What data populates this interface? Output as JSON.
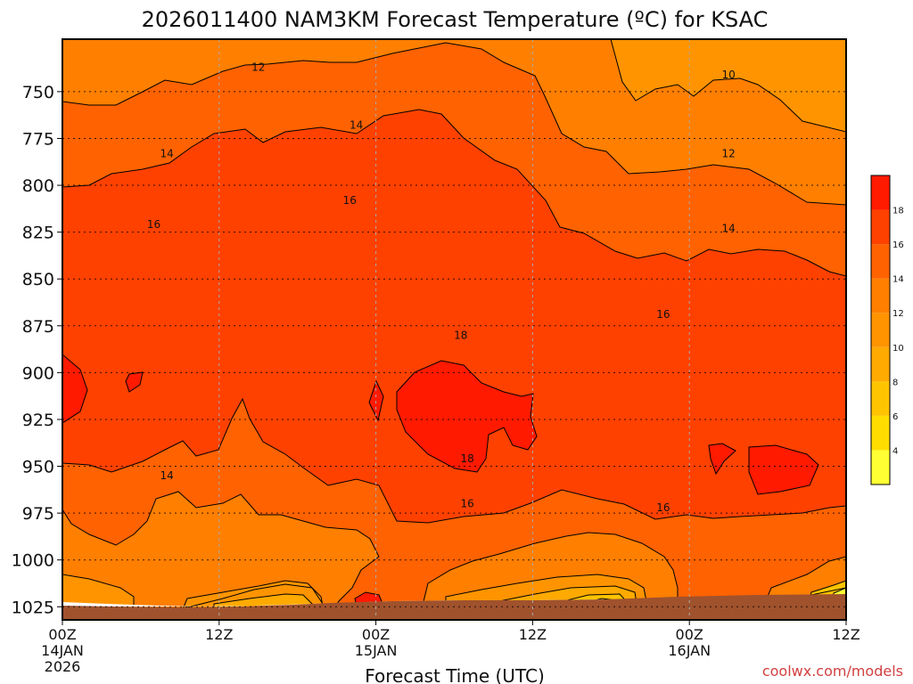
{
  "chart_data": {
    "type": "heatmap",
    "title": "2026011400 NAM3KM Forecast Temperature (ºC) for KSAC",
    "xlabel": "Forecast Time (UTC)",
    "ylabel": "",
    "y_ticks": [
      "750",
      "775",
      "800",
      "825",
      "850",
      "875",
      "900",
      "925",
      "950",
      "975",
      "1000",
      "1025"
    ],
    "y_range": [
      722,
      1032
    ],
    "x_ticks": [
      {
        "hour": 0,
        "label": "00Z",
        "date": "14JAN",
        "year": "2026"
      },
      {
        "hour": 12,
        "label": "12Z",
        "date": "",
        "year": ""
      },
      {
        "hour": 24,
        "label": "00Z",
        "date": "15JAN",
        "year": ""
      },
      {
        "hour": 36,
        "label": "12Z",
        "date": "",
        "year": ""
      },
      {
        "hour": 48,
        "label": "00Z",
        "date": "16JAN",
        "year": ""
      },
      {
        "hour": 60,
        "label": "12Z",
        "date": "",
        "year": ""
      }
    ],
    "x_range": [
      0,
      60
    ],
    "contour_interval": 2,
    "contour_labels": [
      {
        "text": "12",
        "hour": 15.0,
        "p": 737
      },
      {
        "text": "10",
        "hour": 51.0,
        "p": 741
      },
      {
        "text": "14",
        "hour": 22.5,
        "p": 768
      },
      {
        "text": "14",
        "hour": 8.0,
        "p": 783
      },
      {
        "text": "12",
        "hour": 51.0,
        "p": 783
      },
      {
        "text": "16",
        "hour": 22.0,
        "p": 808
      },
      {
        "text": "16",
        "hour": 7.0,
        "p": 821
      },
      {
        "text": "14",
        "hour": 51.0,
        "p": 823
      },
      {
        "text": "16",
        "hour": 46.0,
        "p": 869
      },
      {
        "text": "18",
        "hour": 30.5,
        "p": 880
      },
      {
        "text": "18",
        "hour": 31.0,
        "p": 946
      },
      {
        "text": "14",
        "hour": 8.0,
        "p": 955
      },
      {
        "text": "16",
        "hour": 31.0,
        "p": 970
      },
      {
        "text": "16",
        "hour": 46.0,
        "p": 972
      }
    ],
    "colorbar": {
      "levels": [
        2,
        4,
        6,
        8,
        10,
        12,
        14,
        16,
        18,
        20
      ],
      "tick_labels": [
        "4",
        "6",
        "8",
        "10",
        "12",
        "14",
        "16",
        "18"
      ],
      "colors": [
        "#ffff33",
        "#ffdd00",
        "#ffc400",
        "#ffaa00",
        "#ff9400",
        "#ff7f00",
        "#ff6200",
        "#ff4100",
        "#ff1a00"
      ]
    },
    "grid": true
  },
  "credit": "coolwx.com/models"
}
